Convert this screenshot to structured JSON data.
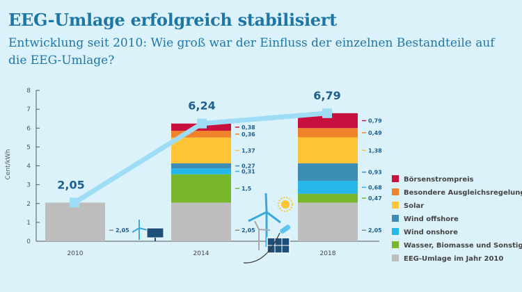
{
  "title": "EEG-Umlage erfolgreich stabilisiert",
  "subtitle": "Entwicklung seit 2010: Wie groß war der Einfluss der einzelnen Bestandteile auf die EEG-Umlage?",
  "chart_data": {
    "type": "bar",
    "stacked": true,
    "title": "EEG-Umlage erfolgreich stabilisiert",
    "ylabel": "Cent/kWh",
    "ylim": [
      0,
      8
    ],
    "yticks": [
      0,
      1,
      2,
      3,
      4,
      5,
      6,
      7,
      8
    ],
    "categories": [
      "2010",
      "2014",
      "2018"
    ],
    "series": [
      {
        "name": "EEG-Umlage im Jahr 2010",
        "color": "#bdbdbd",
        "values": [
          2.05,
          2.05,
          2.05
        ],
        "labels": [
          "2,05",
          "2,05",
          "2,05"
        ]
      },
      {
        "name": "Wasser, Biomasse und Sonstiges",
        "color": "#78b62c",
        "values": [
          0,
          1.5,
          0.47
        ],
        "labels": [
          "",
          "1,5",
          "0,47"
        ]
      },
      {
        "name": "Wind onshore",
        "color": "#25b7ea",
        "values": [
          0,
          0.31,
          0.68
        ],
        "labels": [
          "",
          "0,31",
          "0,68"
        ]
      },
      {
        "name": "Wind offshore",
        "color": "#3b8db5",
        "values": [
          0,
          0.27,
          0.93
        ],
        "labels": [
          "",
          "0,27",
          "0,93"
        ]
      },
      {
        "name": "Solar",
        "color": "#fdc535",
        "values": [
          0,
          1.37,
          1.38
        ],
        "labels": [
          "",
          "1,37",
          "1,38"
        ]
      },
      {
        "name": "Besondere Ausgleichsregelungen",
        "color": "#f0832a",
        "values": [
          0,
          0.36,
          0.49
        ],
        "labels": [
          "",
          "0,36",
          "0,49"
        ]
      },
      {
        "name": "Börsenstrompreis",
        "color": "#c8103f",
        "values": [
          0,
          0.38,
          0.79
        ],
        "labels": [
          "",
          "0,38",
          "0,79"
        ]
      }
    ],
    "line": {
      "color": "#9fdcf5",
      "values": [
        2.05,
        6.24,
        6.79
      ],
      "labels": [
        "2,05",
        "6,24",
        "6,79"
      ]
    },
    "legend_order": [
      "Börsenstrompreis",
      "Besondere Ausgleichsregelungen",
      "Solar",
      "Wind offshore",
      "Wind onshore",
      "Wasser, Biomasse und Sonstiges",
      "EEG-Umlage im Jahr 2010"
    ],
    "legend_position": "right",
    "grid": false
  }
}
